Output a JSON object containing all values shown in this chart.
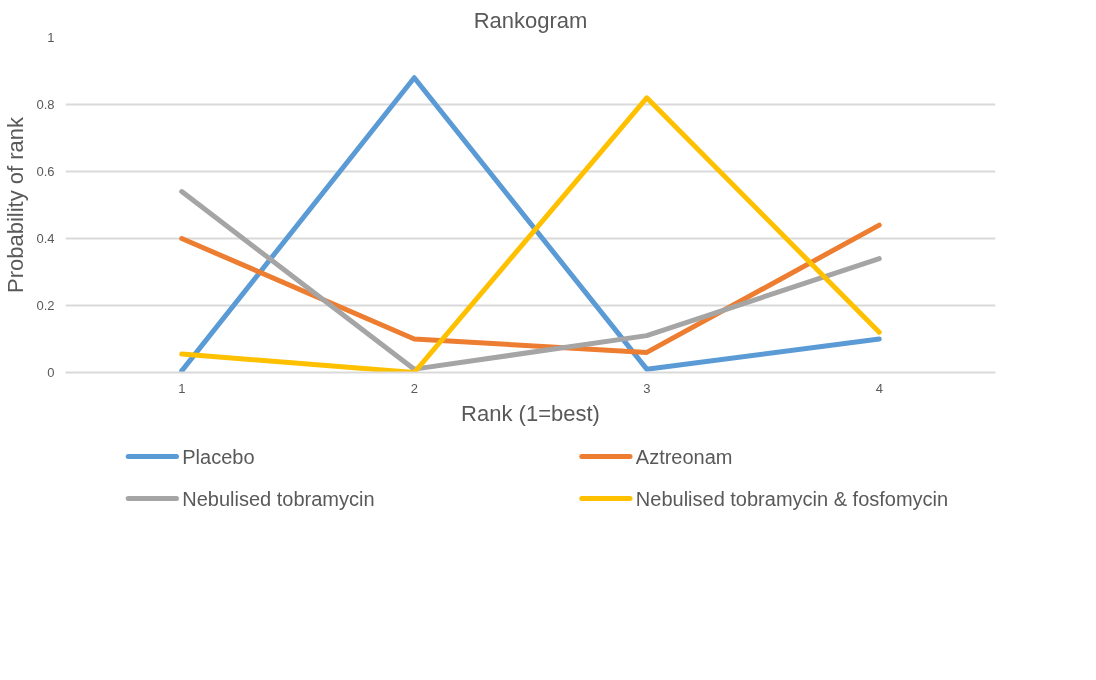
{
  "chart_data": {
    "type": "line",
    "title": "Rankogram",
    "xlabel": "Rank (1=best)",
    "ylabel": "Probability of rank",
    "categories": [
      "1",
      "2",
      "3",
      "4"
    ],
    "series": [
      {
        "name": "Placebo",
        "color": "#5b9bd5",
        "values": [
          0.005,
          0.88,
          0.01,
          0.1
        ]
      },
      {
        "name": "Aztreonam",
        "color": "#ed7d31",
        "values": [
          0.4,
          0.1,
          0.06,
          0.44
        ]
      },
      {
        "name": "Nebulised tobramycin",
        "color": "#a5a5a5",
        "values": [
          0.54,
          0.01,
          0.11,
          0.34
        ]
      },
      {
        "name": "Nebulised tobramycin & fosfomycin",
        "color": "#ffc000",
        "values": [
          0.055,
          0.0,
          0.82,
          0.12
        ]
      }
    ],
    "ylim": [
      0,
      1
    ],
    "yticks": [
      0,
      0.2,
      0.4,
      0.6,
      0.8,
      1
    ],
    "grid": "y",
    "legend": "bottom",
    "marker": "none",
    "line_style": "solid"
  }
}
